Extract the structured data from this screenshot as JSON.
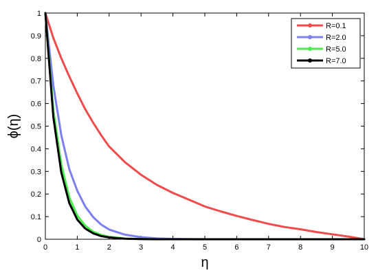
{
  "chart_data": {
    "type": "line",
    "title": "",
    "xlabel": "η",
    "ylabel": "ϕ(η)",
    "xlim": [
      0,
      10
    ],
    "ylim": [
      0,
      1
    ],
    "xticks": [
      "0",
      "1",
      "2",
      "3",
      "4",
      "5",
      "6",
      "7",
      "8",
      "9",
      "10"
    ],
    "yticks": [
      "0",
      "0.1",
      "0.2",
      "0.3",
      "0.4",
      "0.5",
      "0.6",
      "0.7",
      "0.8",
      "0.9",
      "1"
    ],
    "grid": false,
    "legend_position": "top-right",
    "x": [
      0,
      0.25,
      0.5,
      0.75,
      1,
      1.25,
      1.5,
      1.75,
      2,
      2.5,
      3,
      3.5,
      4,
      4.5,
      5,
      5.5,
      6,
      6.5,
      7,
      7.5,
      8,
      8.5,
      9,
      9.5,
      10
    ],
    "series": [
      {
        "name": "R=0.1",
        "color": "#f04a4a",
        "values": [
          1.0,
          0.89,
          0.8,
          0.72,
          0.645,
          0.575,
          0.515,
          0.46,
          0.41,
          0.34,
          0.285,
          0.24,
          0.205,
          0.175,
          0.145,
          0.123,
          0.103,
          0.085,
          0.068,
          0.054,
          0.044,
          0.032,
          0.022,
          0.012,
          0.0
        ]
      },
      {
        "name": "R=2.0",
        "color": "#7b7ff0",
        "values": [
          1.0,
          0.68,
          0.46,
          0.31,
          0.215,
          0.145,
          0.098,
          0.065,
          0.043,
          0.02,
          0.009,
          0.004,
          0.0015,
          0.0005,
          0.0,
          0.0,
          0.0,
          0.0,
          0.0,
          0.0,
          0.0,
          0.0,
          0.0,
          0.0,
          0.0
        ]
      },
      {
        "name": "R=5.0",
        "color": "#44ee44",
        "values": [
          1.0,
          0.57,
          0.33,
          0.185,
          0.105,
          0.06,
          0.033,
          0.019,
          0.011,
          0.003,
          0.001,
          0.0,
          0.0,
          0.0,
          0.0,
          0.0,
          0.0,
          0.0,
          0.0,
          0.0,
          0.0,
          0.0,
          0.0,
          0.0,
          0.0
        ]
      },
      {
        "name": "R=7.0",
        "color": "#000000",
        "values": [
          1.0,
          0.54,
          0.295,
          0.16,
          0.087,
          0.047,
          0.026,
          0.014,
          0.008,
          0.002,
          0.0005,
          0.0,
          0.0,
          0.0,
          0.0,
          0.0,
          0.0,
          0.0,
          0.0,
          0.0,
          0.0,
          0.0,
          0.0,
          0.0,
          0.0
        ]
      }
    ]
  }
}
